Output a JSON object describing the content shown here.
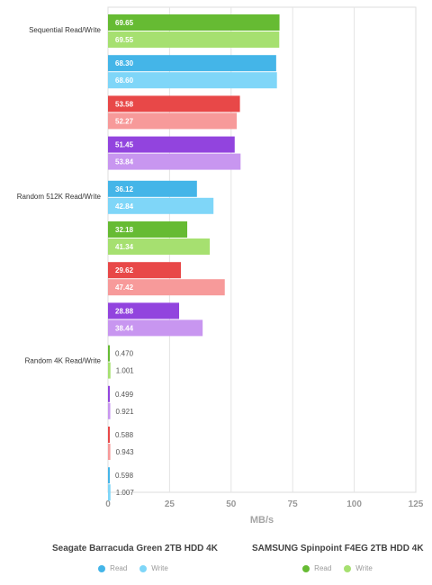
{
  "chart_data": {
    "type": "bar",
    "orientation": "horizontal",
    "xlabel": "MB/s",
    "xlim": [
      0,
      125
    ],
    "xticks": [
      0,
      25,
      50,
      75,
      100,
      125
    ],
    "grid": true,
    "legend_position": "bottom",
    "categories": [
      "Sequential Read/Write",
      "Random 512K Read/Write",
      "Random 4K Read/Write"
    ],
    "drives": [
      {
        "name": "SAMSUNG Spinpoint F4EG 2TB HDD 4K",
        "read_color": "#66bb33",
        "write_color": "#a6e070"
      },
      {
        "name": "Seagate Barracuda Green 2TB HDD 4K",
        "read_color": "#44b5e8",
        "write_color": "#7fd6f8"
      },
      {
        "name": "",
        "read_color": "#e84848",
        "write_color": "#f79a9a"
      },
      {
        "name": "",
        "read_color": "#9244de",
        "write_color": "#c896f0"
      }
    ],
    "groups": [
      {
        "category": "Sequential Read/Write",
        "entries": [
          {
            "drive": 0,
            "read": 69.65,
            "write": 69.55,
            "read_label": "69.65",
            "write_label": "69.55"
          },
          {
            "drive": 1,
            "read": 68.3,
            "write": 68.6,
            "read_label": "68.30",
            "write_label": "68.60"
          },
          {
            "drive": 2,
            "read": 53.58,
            "write": 52.27,
            "read_label": "53.58",
            "write_label": "52.27"
          },
          {
            "drive": 3,
            "read": 51.45,
            "write": 53.84,
            "read_label": "51.45",
            "write_label": "53.84"
          }
        ]
      },
      {
        "category": "Random 512K Read/Write",
        "entries": [
          {
            "drive": 1,
            "read": 36.12,
            "write": 42.84,
            "read_label": "36.12",
            "write_label": "42.84"
          },
          {
            "drive": 0,
            "read": 32.18,
            "write": 41.34,
            "read_label": "32.18",
            "write_label": "41.34"
          },
          {
            "drive": 2,
            "read": 29.62,
            "write": 47.42,
            "read_label": "29.62",
            "write_label": "47.42"
          },
          {
            "drive": 3,
            "read": 28.88,
            "write": 38.44,
            "read_label": "28.88",
            "write_label": "38.44"
          }
        ]
      },
      {
        "category": "Random 4K Read/Write",
        "entries": [
          {
            "drive": 0,
            "read": 0.47,
            "write": 1.001,
            "read_label": "0.470",
            "write_label": "1.001"
          },
          {
            "drive": 3,
            "read": 0.499,
            "write": 0.921,
            "read_label": "0.499",
            "write_label": "0.921"
          },
          {
            "drive": 2,
            "read": 0.588,
            "write": 0.943,
            "read_label": "0.588",
            "write_label": "0.943"
          },
          {
            "drive": 1,
            "read": 0.598,
            "write": 1.007,
            "read_label": "0.598",
            "write_label": "1.007"
          }
        ]
      }
    ]
  },
  "legend": {
    "left": {
      "title": "Seagate Barracuda Green 2TB HDD 4K",
      "read_label": "Read",
      "write_label": "Write",
      "read_color": "#44b5e8",
      "write_color": "#7fd6f8"
    },
    "right": {
      "title": "SAMSUNG Spinpoint F4EG 2TB HDD 4K",
      "read_label": "Read",
      "write_label": "Write",
      "read_color": "#66bb33",
      "write_color": "#a6e070"
    }
  }
}
